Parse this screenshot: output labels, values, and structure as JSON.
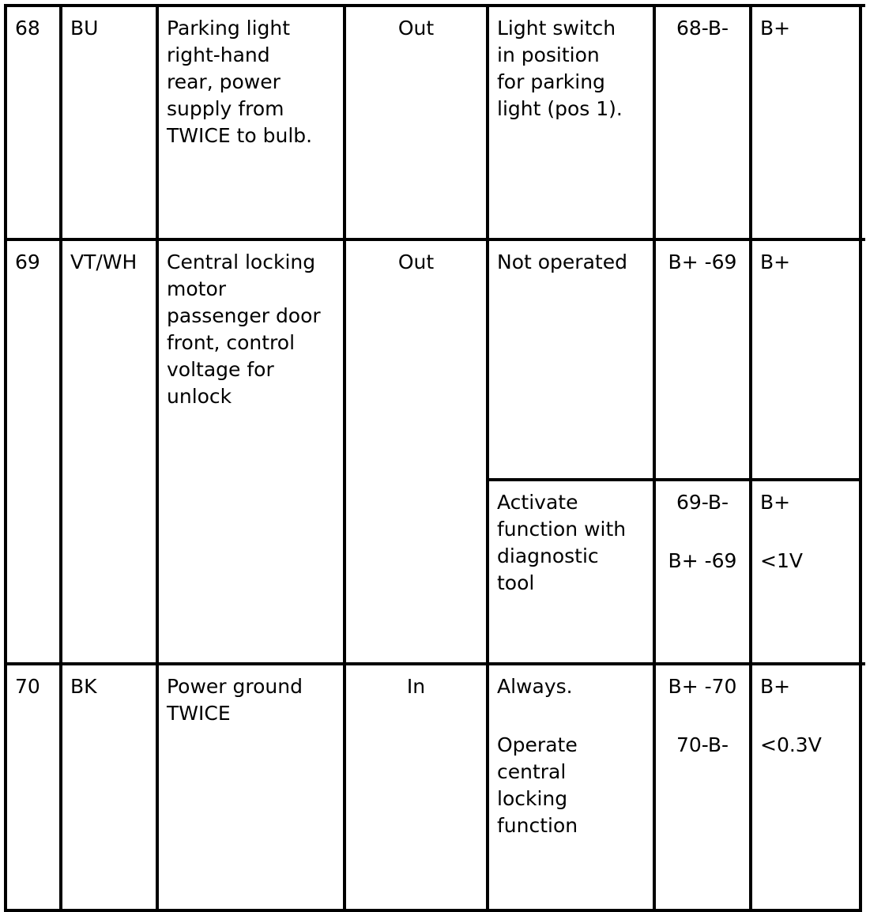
{
  "rows": [
    {
      "pin": "68",
      "color": "BU",
      "description": "Parking light\nright-hand\nrear, power\nsupply from\nTWICE to bulb.",
      "direction": "Out",
      "conditions": [
        {
          "condition": [
            "Light switch\nin position\nfor parking\nlight (pos 1)."
          ],
          "measure": [
            "68-B-"
          ],
          "value": [
            "B+"
          ]
        }
      ]
    },
    {
      "pin": "69",
      "color": "VT/WH",
      "description": "Central locking\nmotor\npassenger door\nfront, control\nvoltage for\nunlock",
      "direction": "Out",
      "conditions": [
        {
          "condition": [
            "Not operated"
          ],
          "measure": [
            "B+ -69"
          ],
          "value": [
            "B+"
          ]
        },
        {
          "condition": [
            "Activate\nfunction with\ndiagnostic\ntool"
          ],
          "measure": [
            "69-B-",
            "B+ -69"
          ],
          "value": [
            "B+",
            "<1V"
          ]
        }
      ]
    },
    {
      "pin": "70",
      "color": "BK",
      "description": "Power ground\nTWICE",
      "direction": "In",
      "conditions": [
        {
          "condition": [
            "Always.",
            "Operate\ncentral\nlocking\nfunction"
          ],
          "measure": [
            "B+ -70",
            "70-B-"
          ],
          "value": [
            "B+",
            "<0.3V"
          ]
        }
      ]
    }
  ]
}
